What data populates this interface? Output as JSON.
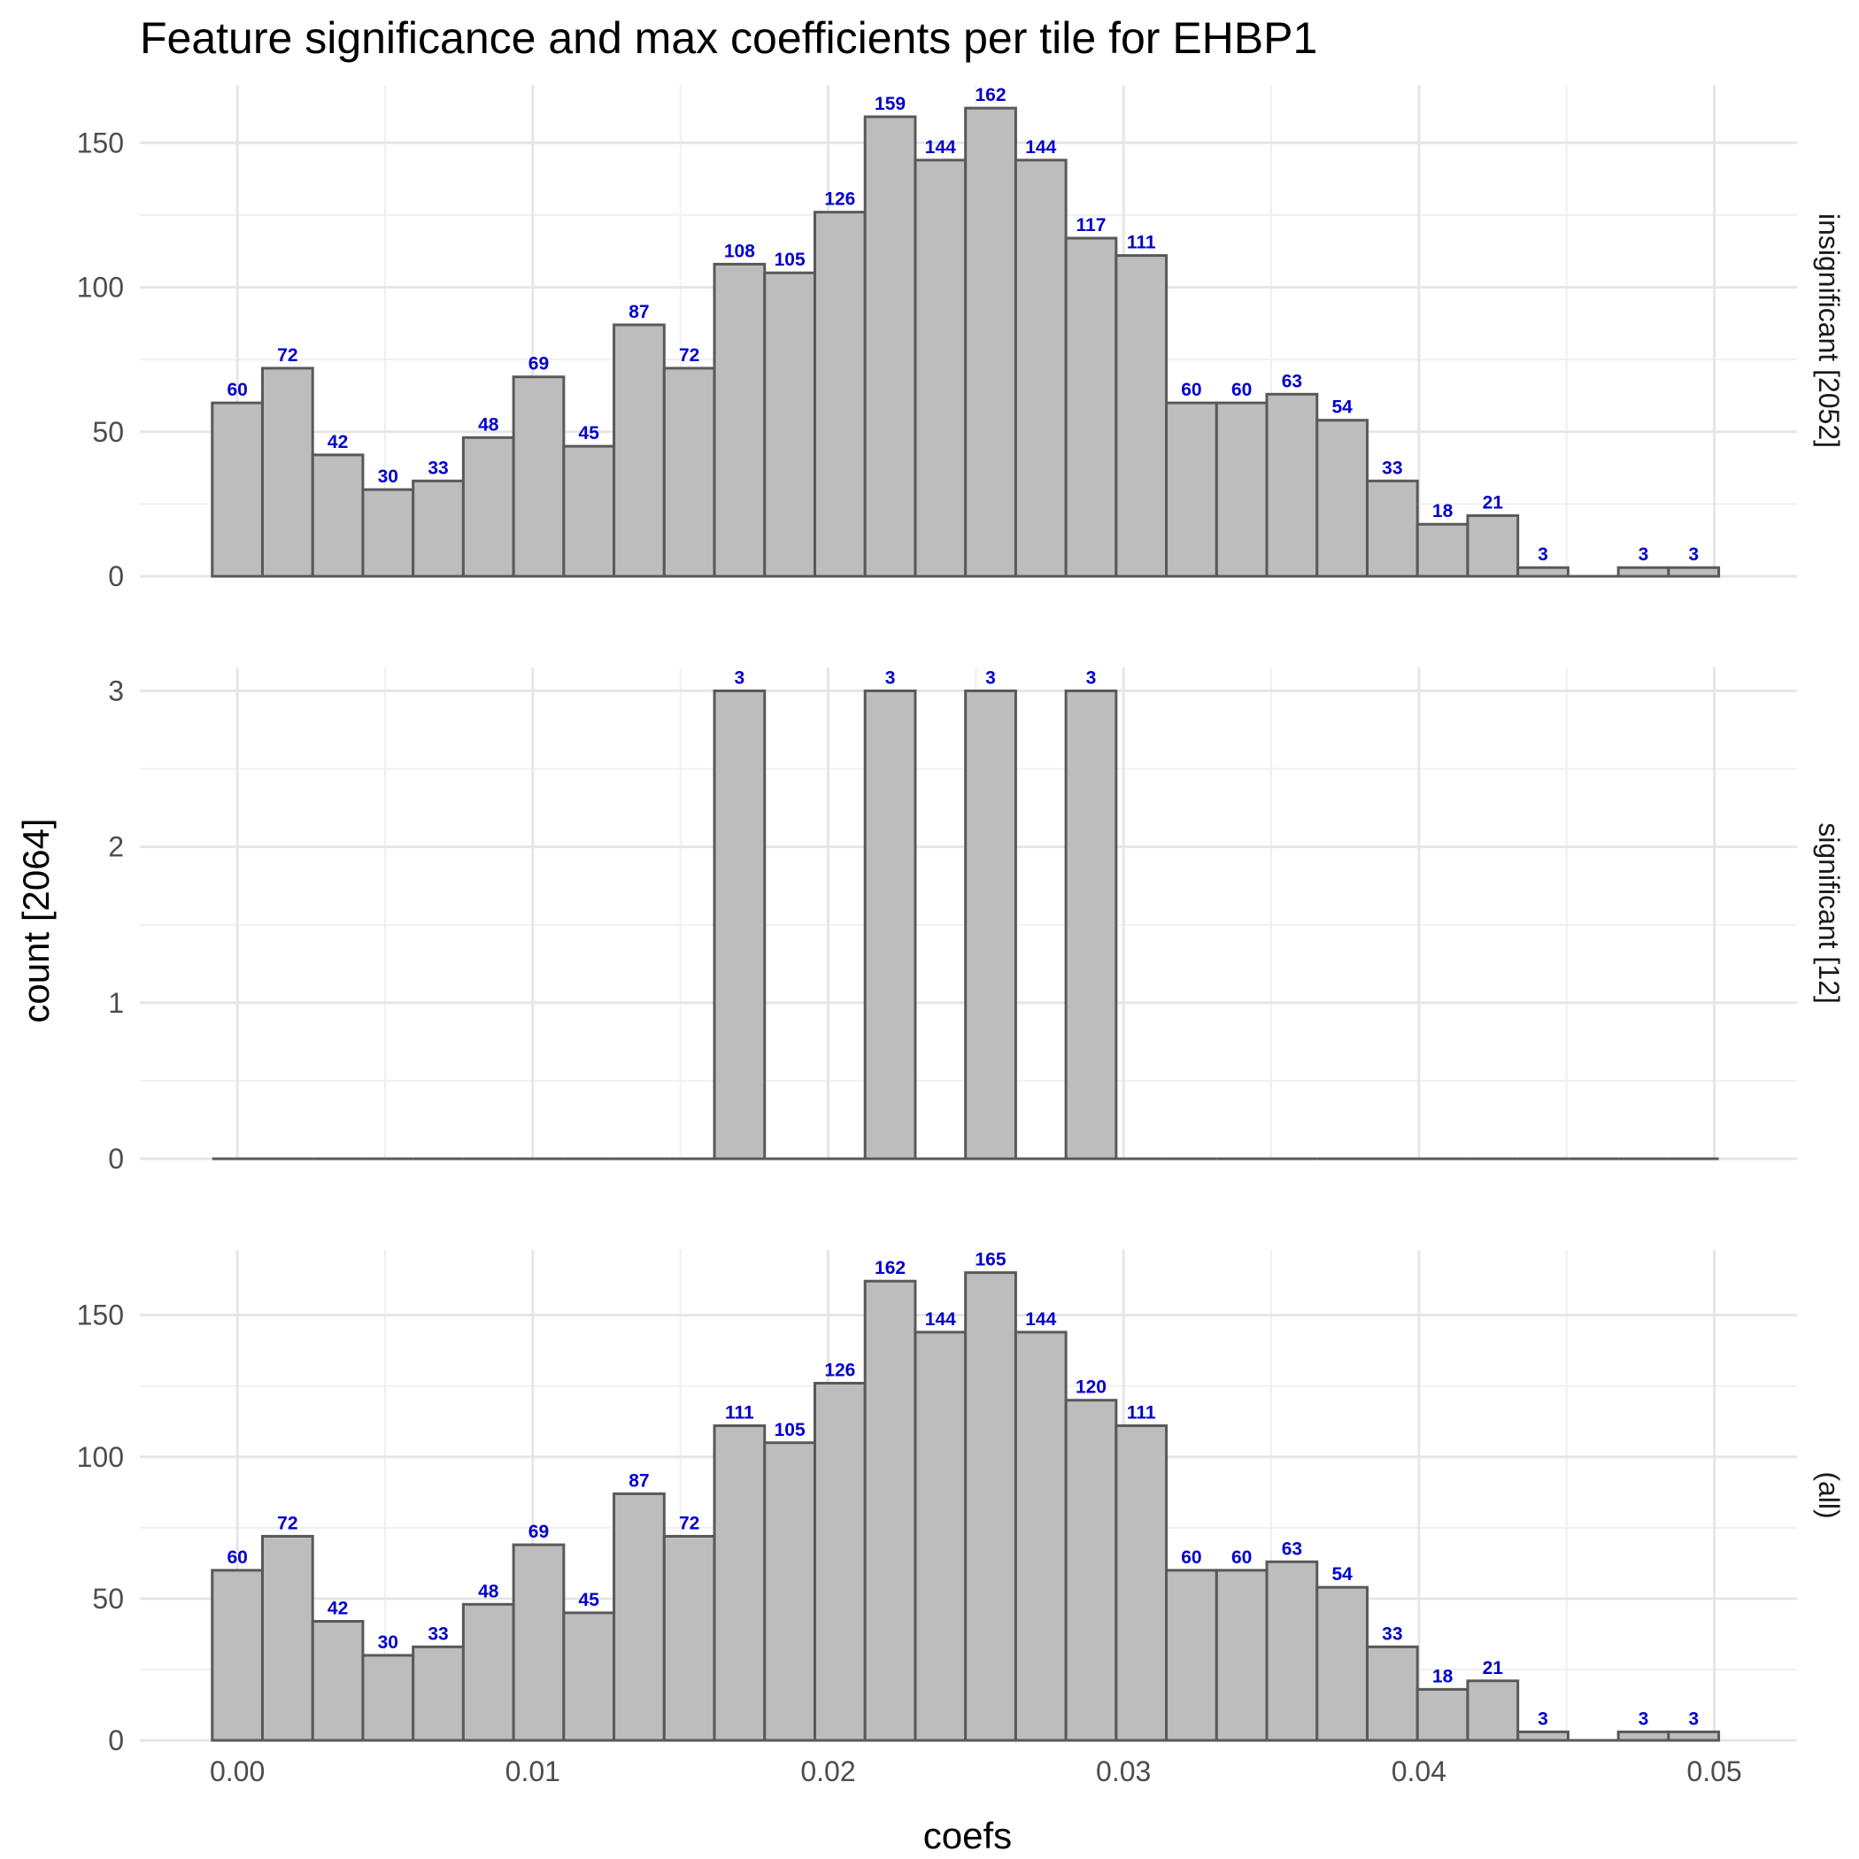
{
  "chart_data": {
    "type": "bar",
    "title": "Feature significance and max coefficients per tile for EHBP1",
    "xlabel": "coefs",
    "ylabel": "count [2064]",
    "xlim": [
      -0.0033,
      0.0528
    ],
    "x_ticks": [
      0.0,
      0.01,
      0.02,
      0.03,
      0.04,
      0.05
    ],
    "x_tick_labels": [
      "0.00",
      "0.01",
      "0.02",
      "0.03",
      "0.04",
      "0.05"
    ],
    "bin_width": 0.0017,
    "bin_centers": [
      0.0,
      0.0017,
      0.0034,
      0.0051,
      0.0068,
      0.0085,
      0.0102,
      0.0119,
      0.0136,
      0.0153,
      0.017,
      0.0187,
      0.0204,
      0.0221,
      0.0238,
      0.0255,
      0.0272,
      0.0289,
      0.0306,
      0.0323,
      0.034,
      0.0357,
      0.0374,
      0.0391,
      0.0408,
      0.0425,
      0.0442,
      0.0459,
      0.0476,
      0.0493
    ],
    "grid": true,
    "bar_fill": "#bdbdbd",
    "bar_outline": "#595959",
    "label_color": "#0000cc",
    "panels": [
      {
        "strip": "insignificant [2052]",
        "ylim": [
          0,
          170
        ],
        "y_ticks": [
          0,
          50,
          100,
          150
        ],
        "values": [
          60,
          72,
          42,
          30,
          33,
          48,
          69,
          45,
          87,
          72,
          108,
          105,
          126,
          159,
          144,
          162,
          144,
          117,
          111,
          60,
          60,
          63,
          54,
          33,
          18,
          21,
          3,
          0,
          3,
          3
        ]
      },
      {
        "strip": "significant [12]",
        "ylim": [
          0,
          3.15
        ],
        "y_ticks": [
          0,
          1,
          2,
          3
        ],
        "values": [
          0,
          0,
          0,
          0,
          0,
          0,
          0,
          0,
          0,
          0,
          3,
          0,
          0,
          3,
          0,
          3,
          0,
          3,
          0,
          0,
          0,
          0,
          0,
          0,
          0,
          0,
          0,
          0,
          0,
          0
        ]
      },
      {
        "strip": "(all)",
        "ylim": [
          0,
          173
        ],
        "y_ticks": [
          0,
          50,
          100,
          150
        ],
        "values": [
          60,
          72,
          42,
          30,
          33,
          48,
          69,
          45,
          87,
          72,
          111,
          105,
          126,
          162,
          144,
          165,
          144,
          120,
          111,
          60,
          60,
          63,
          54,
          33,
          18,
          21,
          3,
          0,
          3,
          3
        ]
      }
    ]
  }
}
